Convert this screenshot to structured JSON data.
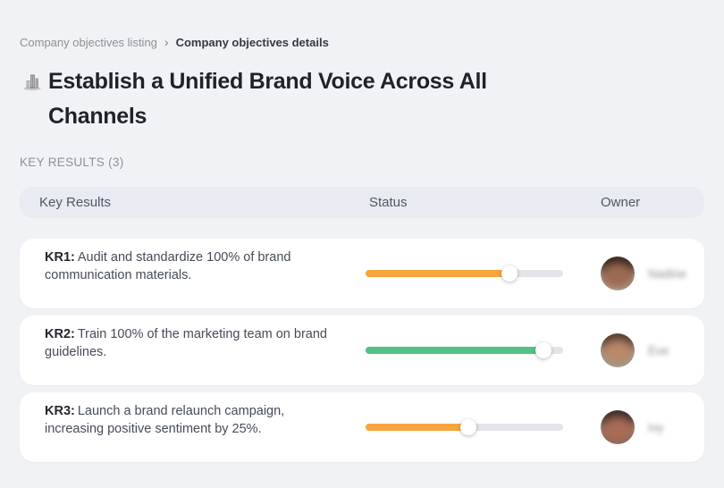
{
  "breadcrumb": {
    "separator": "›",
    "items": [
      {
        "label": "Company objectives listing"
      },
      {
        "label": "Company objectives details"
      }
    ]
  },
  "header": {
    "icon": "buildings-icon",
    "title": "Establish a Unified Brand Voice Across All Channels"
  },
  "section_label": "KEY RESULTS (3)",
  "table": {
    "columns": {
      "key_results": "Key Results",
      "status": "Status",
      "owner": "Owner"
    },
    "rows": [
      {
        "kr_label": "KR1:",
        "kr_text": "Audit and standardize 100% of brand communication materials.",
        "progress_percent": 73,
        "progress_color": "#F7A53C",
        "owner_name": "Nadine",
        "avatar": {
          "hair": "#2A1D19",
          "skin": "#9C6A52",
          "bg_top": "#7C6E68",
          "bg_bottom": "#BFB4AE"
        }
      },
      {
        "kr_label": "KR2:",
        "kr_text": "Train 100% of the marketing team on brand guidelines.",
        "progress_percent": 90,
        "progress_color": "#52C185",
        "owner_name": "Eve",
        "avatar": {
          "hair": "#4A3226",
          "skin": "#B9896B",
          "bg_top": "#8F8F97",
          "bg_bottom": "#86A9A0"
        }
      },
      {
        "kr_label": "KR3:",
        "kr_text": "Launch a brand relaunch campaign, increasing positive sentiment by 25%.",
        "progress_percent": 52,
        "progress_color": "#F7A53C",
        "owner_name": "Ivy",
        "avatar": {
          "hair": "#2B2220",
          "skin": "#A96C55",
          "bg_top": "#C2A49C",
          "bg_bottom": "#6B5A55"
        }
      }
    ]
  },
  "colors": {
    "page_bg": "#F1F2F5",
    "card_bg": "#FFFFFF",
    "table_header_bg": "#E8EBF1",
    "slider_track": "#E4E5E8",
    "accent_orange": "#F7A53C",
    "accent_green": "#52C185"
  }
}
